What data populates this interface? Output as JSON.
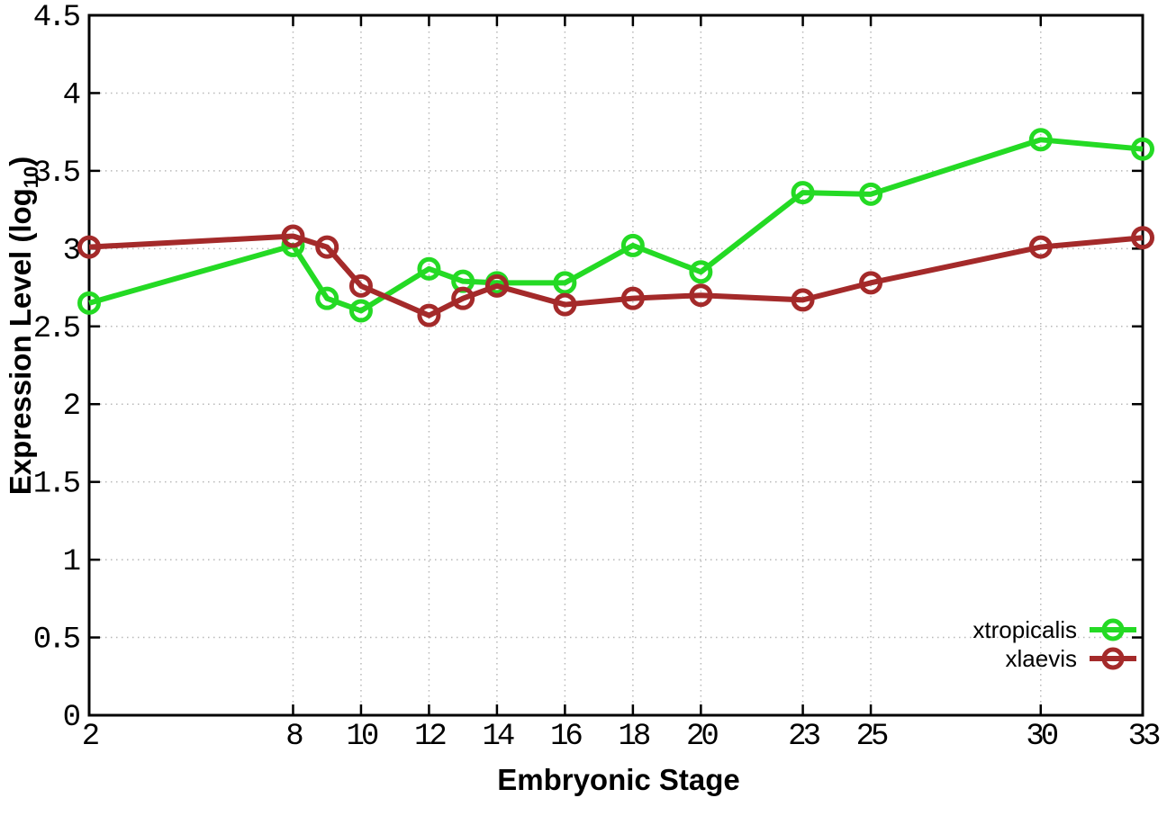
{
  "chart_data": {
    "type": "line",
    "title": "",
    "xlabel": "Embryonic Stage",
    "ylabel": "Expression Level (log10)",
    "ylabel_parts": {
      "prefix": "Expression Level (log",
      "sub": "10",
      "suffix": ")"
    },
    "x": [
      2,
      8,
      9,
      10,
      12,
      13,
      14,
      16,
      18,
      20,
      23,
      25,
      30,
      33
    ],
    "series": [
      {
        "name": "xtropicalis",
        "color": "#24da24",
        "values": [
          2.65,
          3.02,
          2.68,
          2.6,
          2.87,
          2.79,
          2.78,
          2.78,
          3.02,
          2.85,
          3.36,
          3.35,
          3.7,
          3.64
        ]
      },
      {
        "name": "xlaevis",
        "color": "#a42a2a",
        "values": [
          3.01,
          3.08,
          3.01,
          2.76,
          2.57,
          2.68,
          2.76,
          2.64,
          2.68,
          2.7,
          2.67,
          2.78,
          3.01,
          3.07
        ]
      }
    ],
    "xticks": [
      "2",
      "8",
      "10",
      "12",
      "14",
      "16",
      "18",
      "20",
      "23",
      "25",
      "30",
      "33"
    ],
    "yticks": [
      "0",
      "0.5",
      "1",
      "1.5",
      "2",
      "2.5",
      "3",
      "3.5",
      "4",
      "4.5"
    ],
    "xlim": [
      2,
      33
    ],
    "ylim": [
      0,
      4.5
    ],
    "grid": true,
    "legend_position": "bottom-right",
    "colors": {
      "axis": "#000000",
      "grid": "#b8b8b8",
      "background": "#ffffff"
    }
  }
}
